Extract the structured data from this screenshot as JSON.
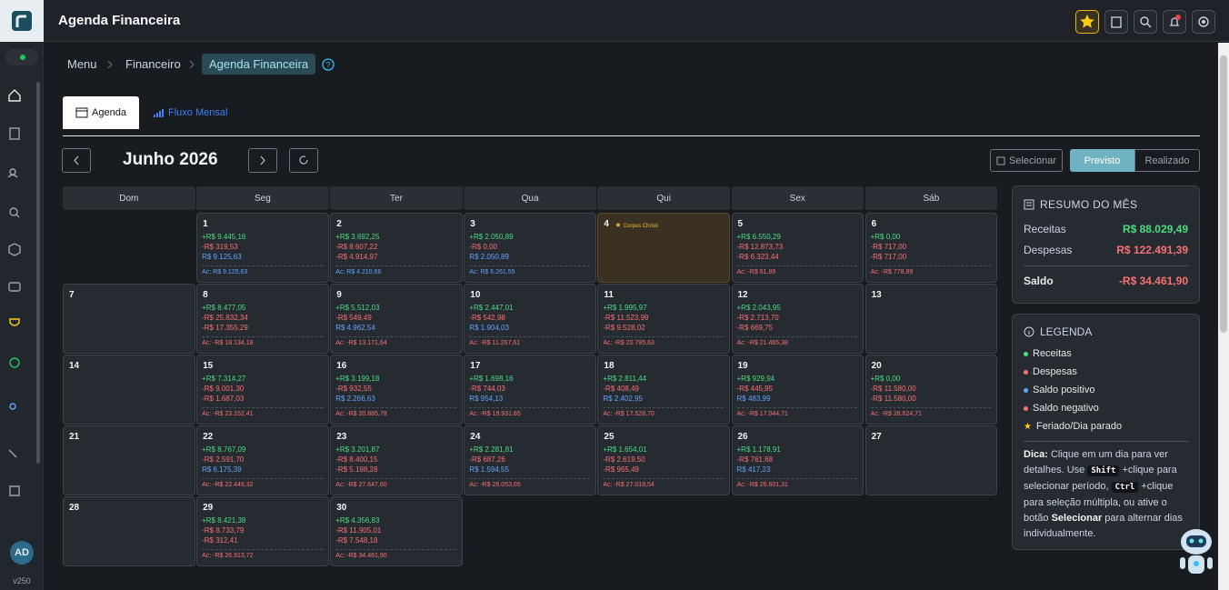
{
  "header": {
    "title": "Agenda Financeira"
  },
  "sidebar": {
    "avatar": "AD",
    "version": "v250"
  },
  "breadcrumb": [
    "Menu",
    "Financeiro",
    "Agenda Financeira"
  ],
  "tabs": [
    "Agenda",
    "Fluxo Mensal"
  ],
  "toolbar": {
    "month": "Junho 2026",
    "select": "Selecionar",
    "modes": [
      "Previsto",
      "Realizado"
    ]
  },
  "calendar": {
    "weekdays": [
      "Dom",
      "Seg",
      "Ter",
      "Qua",
      "Qui",
      "Sex",
      "Sáb"
    ],
    "weeks": [
      [
        null,
        {
          "day": "1",
          "lines": [
            "+R$ 9.445,16",
            "-R$ 319,53",
            "R$ 9.125,63"
          ],
          "acc": "Ac: R$ 9.125,63"
        },
        {
          "day": "2",
          "lines": [
            "+R$ 3.692,25",
            "-R$ 8.607,22",
            "-R$ 4.914,97"
          ],
          "acc": "Ac: R$ 4.210,66"
        },
        {
          "day": "3",
          "lines": [
            "+R$ 2.050,89",
            "-R$ 0,00",
            "R$ 2.050,89"
          ],
          "acc": "Ac: R$ 6.261,55"
        },
        {
          "day": "4",
          "holiday": "Corpus Christi"
        },
        {
          "day": "5",
          "lines": [
            "+R$ 6.550,29",
            "-R$ 12.873,73",
            "-R$ 6.323,44"
          ],
          "acc": "Ac: -R$ 61,89"
        },
        {
          "day": "6",
          "lines": [
            "+R$ 0,00",
            "-R$ 717,00",
            "-R$ 717,00"
          ],
          "acc": "Ac: -R$ 778,89"
        }
      ],
      [
        {
          "day": "7"
        },
        {
          "day": "8",
          "lines": [
            "+R$ 8.477,05",
            "-R$ 25.832,34",
            "-R$ 17.355,29"
          ],
          "acc": "Ac: -R$ 18.134,18"
        },
        {
          "day": "9",
          "lines": [
            "+R$ 5.512,03",
            "-R$ 549,49",
            "R$ 4.962,54"
          ],
          "acc": "Ac: -R$ 13.171,64"
        },
        {
          "day": "10",
          "lines": [
            "+R$ 2.447,01",
            "-R$ 542,98",
            "R$ 1.904,03"
          ],
          "acc": "Ac: -R$ 11.267,61"
        },
        {
          "day": "11",
          "lines": [
            "+R$ 1.995,97",
            "-R$ 11.523,99",
            "-R$ 9.528,02"
          ],
          "acc": "Ac: -R$ 20.795,63"
        },
        {
          "day": "12",
          "lines": [
            "+R$ 2.043,95",
            "-R$ 2.713,70",
            "-R$ 669,75"
          ],
          "acc": "Ac: -R$ 21.465,38"
        },
        {
          "day": "13"
        }
      ],
      [
        {
          "day": "14"
        },
        {
          "day": "15",
          "lines": [
            "+R$ 7.314,27",
            "-R$ 9.001,30",
            "-R$ 1.687,03"
          ],
          "acc": "Ac: -R$ 23.152,41"
        },
        {
          "day": "16",
          "lines": [
            "+R$ 3.199,18",
            "-R$ 932,55",
            "R$ 2.266,63"
          ],
          "acc": "Ac: -R$ 20.885,78"
        },
        {
          "day": "17",
          "lines": [
            "+R$ 1.698,16",
            "-R$ 744,03",
            "R$ 954,13"
          ],
          "acc": "Ac: -R$ 19.931,65"
        },
        {
          "day": "18",
          "lines": [
            "+R$ 2.811,44",
            "-R$ 408,49",
            "R$ 2.402,95"
          ],
          "acc": "Ac: -R$ 17.528,70"
        },
        {
          "day": "19",
          "lines": [
            "+R$ 929,94",
            "-R$ 445,95",
            "R$ 483,99"
          ],
          "acc": "Ac: -R$ 17.044,71"
        },
        {
          "day": "20",
          "lines": [
            "+R$ 0,00",
            "-R$ 11.580,00",
            "-R$ 11.580,00"
          ],
          "acc": "Ac: -R$ 28.624,71"
        }
      ],
      [
        {
          "day": "21"
        },
        {
          "day": "22",
          "lines": [
            "+R$ 8.767,09",
            "-R$ 2.591,70",
            "R$ 6.175,39"
          ],
          "acc": "Ac: -R$ 22.449,32"
        },
        {
          "day": "23",
          "lines": [
            "+R$ 3.201,87",
            "-R$ 8.400,15",
            "-R$ 5.198,28"
          ],
          "acc": "Ac: -R$ 27.647,60"
        },
        {
          "day": "24",
          "lines": [
            "+R$ 2.281,81",
            "-R$ 687,26",
            "R$ 1.594,55"
          ],
          "acc": "Ac: -R$ 26.053,05"
        },
        {
          "day": "25",
          "lines": [
            "+R$ 1.654,01",
            "-R$ 2.619,50",
            "-R$ 965,49"
          ],
          "acc": "Ac: -R$ 27.018,54"
        },
        {
          "day": "26",
          "lines": [
            "+R$ 1.178,91",
            "-R$ 761,68",
            "R$ 417,23"
          ],
          "acc": "Ac: -R$ 26.601,31"
        },
        {
          "day": "27"
        }
      ],
      [
        {
          "day": "28"
        },
        {
          "day": "29",
          "lines": [
            "+R$ 8.421,38",
            "-R$ 8.733,79",
            "-R$ 312,41"
          ],
          "acc": "Ac: -R$ 26.913,72"
        },
        {
          "day": "30",
          "lines": [
            "+R$ 4.356,83",
            "-R$ 11.905,01",
            "-R$ 7.548,18"
          ],
          "acc": "Ac: -R$ 34.461,90"
        }
      ]
    ]
  },
  "summary": {
    "title": "RESUMO DO MÊS",
    "rows": [
      [
        "Receitas",
        "R$ 88.029,49"
      ],
      [
        "Despesas",
        "R$ 122.491,39"
      ]
    ],
    "total": [
      "Saldo",
      "-R$ 34.461,90"
    ]
  },
  "legend": {
    "title": "LEGENDA",
    "items": [
      "Receitas",
      "Despesas",
      "Saldo positivo",
      "Saldo negativo",
      "Feriado/Dia parado"
    ],
    "tip": [
      "Dica:",
      " Clique em um dia para ver detalhes. Use ",
      "Shift",
      " +clique para selecionar período, ",
      "Ctrl",
      " +clique para seleção múltipla, ou ative o botão ",
      "Selecionar",
      " para alternar dias individualmente."
    ]
  }
}
